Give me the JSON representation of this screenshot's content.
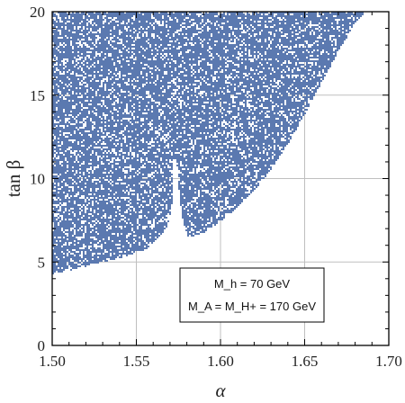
{
  "chart_data": {
    "type": "scatter",
    "title": "",
    "xlabel": "α",
    "ylabel": "tan β",
    "xlim": [
      1.5,
      1.7
    ],
    "ylim": [
      0,
      20
    ],
    "xticks": [
      1.5,
      1.55,
      1.6,
      1.65,
      1.7
    ],
    "xtick_labels": [
      "1.50",
      "1.55",
      "1.60",
      "1.65",
      "1.70"
    ],
    "yticks": [
      0,
      5,
      10,
      15,
      20
    ],
    "ytick_labels": [
      "0",
      "5",
      "10",
      "15",
      "20"
    ],
    "grid": true,
    "point_color": "#5b79b0",
    "annotation": {
      "line1": "M_h = 70 GeV",
      "line2": "M_A = M_H+ = 170 GeV",
      "placement": "lower-right"
    },
    "region": {
      "description_bounds": {
        "left_edge": {
          "x": 1.5,
          "ymin": 4.3
        },
        "lower_boundary": [
          [
            1.5,
            4.3
          ],
          [
            1.52,
            4.8
          ],
          [
            1.54,
            5.3
          ],
          [
            1.55,
            5.6
          ],
          [
            1.556,
            5.8
          ],
          [
            1.562,
            6.4
          ],
          [
            1.568,
            7.1
          ],
          [
            1.571,
            8.0
          ],
          [
            1.572,
            11.2
          ]
        ],
        "slit": {
          "x": 1.571,
          "ytop": 11.2
        },
        "right_lower_boundary": [
          [
            1.574,
            11.2
          ],
          [
            1.576,
            8.6
          ],
          [
            1.578,
            7.4
          ],
          [
            1.581,
            6.5
          ],
          [
            1.59,
            6.8
          ],
          [
            1.6,
            7.5
          ],
          [
            1.61,
            8.3
          ],
          [
            1.62,
            9.3
          ],
          [
            1.63,
            10.6
          ],
          [
            1.64,
            12.1
          ],
          [
            1.65,
            13.9
          ],
          [
            1.66,
            15.8
          ],
          [
            1.67,
            17.6
          ],
          [
            1.68,
            19.4
          ],
          [
            1.686,
            20.0
          ]
        ],
        "ymax": 20
      }
    }
  }
}
